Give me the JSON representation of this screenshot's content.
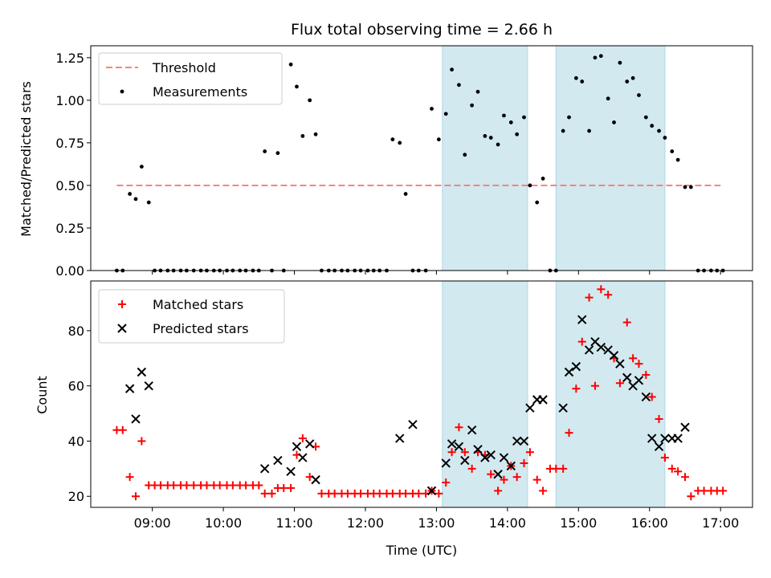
{
  "chart_data": [
    {
      "type": "scatter",
      "title": "Flux total observing time = 2.66 h",
      "xlabel": "",
      "ylabel": "Matched/Predicted stars",
      "xlim": [
        "08:08",
        "17:27"
      ],
      "ylim": [
        0,
        1.32
      ],
      "yticks": [
        "0.00",
        "0.25",
        "0.50",
        "0.75",
        "1.00",
        "1.25"
      ],
      "xticks": [
        "09:00",
        "10:00",
        "11:00",
        "12:00",
        "13:00",
        "14:00",
        "15:00",
        "16:00",
        "17:00"
      ],
      "show_xtick_labels": false,
      "shaded_intervals": [
        [
          "13:05",
          "14:17"
        ],
        [
          "14:41",
          "16:13"
        ]
      ],
      "shade_color": "#d2e9f0",
      "legend_position": "upper-left",
      "legend": [
        "Threshold",
        "Measurements"
      ],
      "threshold": {
        "name": "Threshold",
        "value": 0.5,
        "x_range": [
          "08:30",
          "17:00"
        ],
        "color": "#ff8080"
      },
      "series": [
        {
          "name": "Measurements",
          "color": "#000000",
          "x": [
            "08:30",
            "08:35",
            "08:41",
            "08:46",
            "08:51",
            "08:57",
            "09:02",
            "09:07",
            "09:13",
            "09:18",
            "09:24",
            "09:29",
            "09:35",
            "09:41",
            "09:46",
            "09:52",
            "09:57",
            "10:03",
            "10:08",
            "10:14",
            "10:19",
            "10:25",
            "10:30",
            "10:35",
            "10:41",
            "10:46",
            "10:51",
            "10:57",
            "11:02",
            "11:07",
            "11:13",
            "11:18",
            "11:23",
            "11:29",
            "11:34",
            "11:40",
            "11:45",
            "11:51",
            "11:56",
            "12:02",
            "12:07",
            "12:12",
            "12:18",
            "12:23",
            "12:29",
            "12:34",
            "12:40",
            "12:45",
            "12:51",
            "12:56",
            "13:02",
            "13:08",
            "13:13",
            "13:19",
            "13:24",
            "13:30",
            "13:35",
            "13:41",
            "13:46",
            "13:52",
            "13:57",
            "14:03",
            "14:08",
            "14:14",
            "14:19",
            "14:25",
            "14:30",
            "14:36",
            "14:41",
            "14:47",
            "14:52",
            "14:58",
            "15:03",
            "15:09",
            "15:14",
            "15:19",
            "15:25",
            "15:30",
            "15:35",
            "15:41",
            "15:46",
            "15:51",
            "15:57",
            "16:02",
            "16:08",
            "16:13",
            "16:19",
            "16:24",
            "16:30",
            "16:35",
            "16:41",
            "16:46",
            "16:52",
            "16:57",
            "17:02"
          ],
          "y": [
            0.0,
            0.0,
            0.45,
            0.42,
            0.61,
            0.4,
            0.0,
            0.0,
            0.0,
            0.0,
            0.0,
            0.0,
            0.0,
            0.0,
            0.0,
            0.0,
            0.0,
            0.0,
            0.0,
            0.0,
            0.0,
            0.0,
            0.0,
            0.7,
            0.0,
            0.69,
            0.0,
            1.21,
            1.08,
            0.79,
            1.0,
            0.8,
            0.0,
            0.0,
            0.0,
            0.0,
            0.0,
            0.0,
            0.0,
            0.0,
            0.0,
            0.0,
            0.0,
            0.77,
            0.75,
            0.45,
            0.0,
            0.0,
            0.0,
            0.95,
            0.77,
            0.92,
            1.18,
            1.09,
            0.68,
            0.97,
            1.05,
            0.79,
            0.78,
            0.74,
            0.91,
            0.87,
            0.8,
            0.9,
            0.5,
            0.4,
            0.54,
            0.0,
            0.0,
            0.82,
            0.9,
            1.13,
            1.11,
            0.82,
            1.25,
            1.26,
            1.01,
            0.87,
            1.22,
            1.11,
            1.13,
            1.03,
            0.9,
            0.85,
            0.82,
            0.78,
            0.7,
            0.65,
            0.49,
            0.49,
            0.0,
            0.0,
            0.0,
            0.0,
            0.0
          ]
        }
      ]
    },
    {
      "type": "scatter",
      "title": "",
      "xlabel": "Time (UTC)",
      "ylabel": "Count",
      "xlim": [
        "08:08",
        "17:27"
      ],
      "ylim": [
        16,
        98
      ],
      "yticks": [
        "20",
        "40",
        "60",
        "80"
      ],
      "xticks": [
        "09:00",
        "10:00",
        "11:00",
        "12:00",
        "13:00",
        "14:00",
        "15:00",
        "16:00",
        "17:00"
      ],
      "shaded_intervals": [
        [
          "13:05",
          "14:17"
        ],
        [
          "14:41",
          "16:13"
        ]
      ],
      "shade_color": "#d2e9f0",
      "legend_position": "upper-left",
      "legend": [
        "Matched stars",
        "Predicted stars"
      ],
      "series": [
        {
          "name": "Matched stars",
          "marker": "plus",
          "color": "#ff0000",
          "x": [
            "08:30",
            "08:35",
            "08:41",
            "08:46",
            "08:51",
            "08:57",
            "09:02",
            "09:07",
            "09:13",
            "09:18",
            "09:24",
            "09:29",
            "09:35",
            "09:41",
            "09:46",
            "09:52",
            "09:57",
            "10:03",
            "10:08",
            "10:14",
            "10:19",
            "10:25",
            "10:30",
            "10:35",
            "10:41",
            "10:46",
            "10:51",
            "10:57",
            "11:02",
            "11:07",
            "11:13",
            "11:18",
            "11:23",
            "11:29",
            "11:34",
            "11:40",
            "11:45",
            "11:51",
            "11:56",
            "12:02",
            "12:07",
            "12:12",
            "12:18",
            "12:23",
            "12:29",
            "12:34",
            "12:40",
            "12:45",
            "12:51",
            "12:56",
            "13:02",
            "13:08",
            "13:13",
            "13:19",
            "13:24",
            "13:30",
            "13:35",
            "13:41",
            "13:46",
            "13:52",
            "13:57",
            "14:03",
            "14:08",
            "14:14",
            "14:19",
            "14:25",
            "14:30",
            "14:36",
            "14:41",
            "14:47",
            "14:52",
            "14:58",
            "15:03",
            "15:09",
            "15:14",
            "15:19",
            "15:25",
            "15:30",
            "15:35",
            "15:41",
            "15:46",
            "15:51",
            "15:57",
            "16:02",
            "16:08",
            "16:13",
            "16:19",
            "16:24",
            "16:30",
            "16:35",
            "16:41",
            "16:46",
            "16:52",
            "16:57",
            "17:02"
          ],
          "y": [
            44,
            44,
            27,
            20,
            40,
            24,
            24,
            24,
            24,
            24,
            24,
            24,
            24,
            24,
            24,
            24,
            24,
            24,
            24,
            24,
            24,
            24,
            24,
            21,
            21,
            23,
            23,
            23,
            35,
            41,
            27,
            38,
            21,
            21,
            21,
            21,
            21,
            21,
            21,
            21,
            21,
            21,
            21,
            21,
            21,
            21,
            21,
            21,
            21,
            22,
            21,
            25,
            36,
            45,
            36,
            30,
            36,
            35,
            28,
            22,
            26,
            31,
            27,
            32,
            36,
            26,
            22,
            30,
            30,
            30,
            43,
            59,
            76,
            92,
            60,
            95,
            93,
            70,
            61,
            83,
            70,
            68,
            64,
            56,
            48,
            34,
            30,
            29,
            27,
            20,
            22,
            22,
            22,
            22,
            22
          ]
        },
        {
          "name": "Predicted stars",
          "marker": "x",
          "color": "#000000",
          "x": [
            "08:41",
            "08:46",
            "08:51",
            "08:57",
            "10:35",
            "10:46",
            "10:57",
            "11:02",
            "11:07",
            "11:13",
            "11:18",
            "12:29",
            "12:40",
            "12:56",
            "13:08",
            "13:13",
            "13:19",
            "13:24",
            "13:30",
            "13:35",
            "13:41",
            "13:46",
            "13:52",
            "13:57",
            "14:03",
            "14:08",
            "14:14",
            "14:19",
            "14:25",
            "14:30",
            "14:47",
            "14:52",
            "14:58",
            "15:03",
            "15:09",
            "15:14",
            "15:19",
            "15:25",
            "15:30",
            "15:35",
            "15:41",
            "15:46",
            "15:51",
            "15:57",
            "16:02",
            "16:08",
            "16:13",
            "16:19",
            "16:24",
            "16:30"
          ],
          "y": [
            59,
            48,
            65,
            60,
            30,
            33,
            29,
            38,
            34,
            39,
            26,
            41,
            46,
            22,
            32,
            39,
            38,
            33,
            44,
            37,
            34,
            35,
            28,
            34,
            31,
            40,
            40,
            52,
            55,
            55,
            52,
            65,
            67,
            84,
            73,
            76,
            74,
            73,
            71,
            68,
            63,
            60,
            62,
            56,
            41,
            38,
            41,
            41,
            41,
            45
          ]
        }
      ]
    }
  ]
}
